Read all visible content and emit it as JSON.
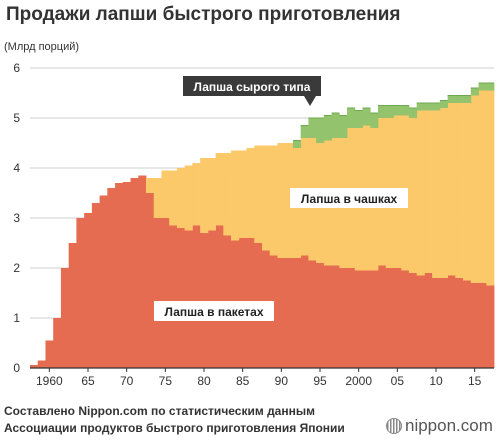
{
  "colors": {
    "packet": "#e56c50",
    "cup": "#fbc96a",
    "fresh": "#93c46d",
    "fresh_edge": "#6ea84e",
    "axis": "#333333",
    "grid": "#cfcfcf",
    "callout": "#3a3a3a"
  },
  "chart_data": {
    "type": "area",
    "title": "Продажи лапши быстрого приготовления",
    "ylabel": "(Млрд порций)",
    "xlabel": "",
    "xlim": [
      1958,
      2018
    ],
    "ylim": [
      0,
      6
    ],
    "yticks": [
      "0",
      "1",
      "2",
      "3",
      "4",
      "5",
      "6"
    ],
    "xticks": [
      {
        "year": 1960,
        "label": "1960"
      },
      {
        "year": 1965,
        "label": "65"
      },
      {
        "year": 1970,
        "label": "70"
      },
      {
        "year": 1975,
        "label": "75"
      },
      {
        "year": 1980,
        "label": "80"
      },
      {
        "year": 1985,
        "label": "85"
      },
      {
        "year": 1990,
        "label": "90"
      },
      {
        "year": 1995,
        "label": "95"
      },
      {
        "year": 2000,
        "label": "2000"
      },
      {
        "year": 2005,
        "label": "05"
      },
      {
        "year": 2010,
        "label": "10"
      },
      {
        "year": 2015,
        "label": "15"
      }
    ],
    "grid": true,
    "stacked": true,
    "x": [
      1958,
      1959,
      1960,
      1961,
      1962,
      1963,
      1964,
      1965,
      1966,
      1967,
      1968,
      1969,
      1970,
      1971,
      1972,
      1973,
      1974,
      1975,
      1976,
      1977,
      1978,
      1979,
      1980,
      1981,
      1982,
      1983,
      1984,
      1985,
      1986,
      1987,
      1988,
      1989,
      1990,
      1991,
      1992,
      1993,
      1994,
      1995,
      1996,
      1997,
      1998,
      1999,
      2000,
      2001,
      2002,
      2003,
      2004,
      2005,
      2006,
      2007,
      2008,
      2009,
      2010,
      2011,
      2012,
      2013,
      2014,
      2015,
      2016,
      2017
    ],
    "series": [
      {
        "name": "Лапша в пакетах",
        "key": "packet",
        "values": [
          0.06,
          0.15,
          0.55,
          1.0,
          2.0,
          2.5,
          3.0,
          3.1,
          3.3,
          3.45,
          3.6,
          3.7,
          3.72,
          3.8,
          3.85,
          3.5,
          3.0,
          3.0,
          2.85,
          2.8,
          2.75,
          2.85,
          2.7,
          2.75,
          2.85,
          2.65,
          2.55,
          2.6,
          2.6,
          2.5,
          2.35,
          2.25,
          2.2,
          2.2,
          2.2,
          2.25,
          2.15,
          2.1,
          2.05,
          2.05,
          2.0,
          2.0,
          1.95,
          1.95,
          1.95,
          2.05,
          2.0,
          2.0,
          1.95,
          1.9,
          1.85,
          1.9,
          1.8,
          1.8,
          1.85,
          1.8,
          1.75,
          1.7,
          1.7,
          1.65
        ]
      },
      {
        "name": "Лапша в чашках",
        "key": "cup",
        "values": [
          0,
          0,
          0,
          0,
          0,
          0,
          0,
          0,
          0,
          0,
          0,
          0,
          0,
          0,
          0,
          0.3,
          0.8,
          0.95,
          1.1,
          1.2,
          1.3,
          1.25,
          1.5,
          1.45,
          1.45,
          1.65,
          1.8,
          1.75,
          1.8,
          1.95,
          2.1,
          2.2,
          2.3,
          2.3,
          2.2,
          2.35,
          2.45,
          2.4,
          2.5,
          2.55,
          2.6,
          2.8,
          2.85,
          2.9,
          2.85,
          2.95,
          3.0,
          3.05,
          3.1,
          3.1,
          3.3,
          3.25,
          3.35,
          3.4,
          3.45,
          3.5,
          3.55,
          3.75,
          3.85,
          3.9
        ]
      },
      {
        "name": "Лапша сырого типа",
        "key": "fresh",
        "values": [
          0,
          0,
          0,
          0,
          0,
          0,
          0,
          0,
          0,
          0,
          0,
          0,
          0,
          0,
          0,
          0,
          0,
          0,
          0,
          0,
          0,
          0,
          0,
          0,
          0,
          0,
          0,
          0,
          0,
          0,
          0,
          0,
          0,
          0,
          0.15,
          0.25,
          0.4,
          0.5,
          0.5,
          0.5,
          0.45,
          0.4,
          0.35,
          0.35,
          0.3,
          0.25,
          0.25,
          0.2,
          0.2,
          0.2,
          0.15,
          0.15,
          0.15,
          0.15,
          0.15,
          0.15,
          0.15,
          0.15,
          0.15,
          0.15
        ]
      }
    ],
    "annotations": {
      "packet_label": "Лапша в пакетах",
      "cup_label": "Лапша в чашках",
      "fresh_label": "Лапша сырого типа"
    }
  },
  "footer": {
    "source_line1": "Составлено Nippon.com по статистическим данным",
    "source_line2": "Ассоциации продуктов быстрого приготовления Японии",
    "brand": "nippon.com"
  }
}
